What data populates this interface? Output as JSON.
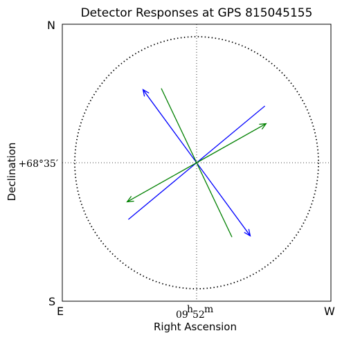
{
  "chart_data": {
    "type": "vector-field",
    "title": "Detector Responses at GPS 815045155",
    "xlabel": "Right Ascension",
    "ylabel": "Declination",
    "xlim": [
      -1,
      1
    ],
    "ylim": [
      -1,
      1
    ],
    "xticks": [
      {
        "value": 0,
        "label_main": "09",
        "label_sup1": "h",
        "label_mid": "52",
        "label_sup2": "m"
      }
    ],
    "yticks": [
      {
        "value": 0,
        "label": "+68°35′"
      }
    ],
    "corners": {
      "top_left": "N",
      "bottom_left": "S",
      "left_bottom": "E",
      "right_bottom": "W"
    },
    "grid": true,
    "circle_radius": 1,
    "series": [
      {
        "color": "#0000ff",
        "vectors": [
          {
            "tail": [
              0,
              0
            ],
            "head": [
              -0.44,
              0.58
            ],
            "arrowhead": true
          },
          {
            "tail": [
              0,
              0
            ],
            "head": [
              0.44,
              -0.58
            ],
            "arrowhead": true
          },
          {
            "tail": [
              0,
              0
            ],
            "head": [
              0.56,
              0.45
            ],
            "arrowhead": false
          },
          {
            "tail": [
              0,
              0
            ],
            "head": [
              -0.56,
              -0.45
            ],
            "arrowhead": false
          }
        ]
      },
      {
        "color": "#008000",
        "vectors": [
          {
            "tail": [
              0,
              0
            ],
            "head": [
              -0.29,
              0.59
            ],
            "arrowhead": false
          },
          {
            "tail": [
              0,
              0
            ],
            "head": [
              0.29,
              -0.59
            ],
            "arrowhead": false
          },
          {
            "tail": [
              0,
              0
            ],
            "head": [
              0.57,
              0.31
            ],
            "arrowhead": true
          },
          {
            "tail": [
              0,
              0
            ],
            "head": [
              -0.57,
              -0.31
            ],
            "arrowhead": true
          }
        ]
      }
    ]
  }
}
